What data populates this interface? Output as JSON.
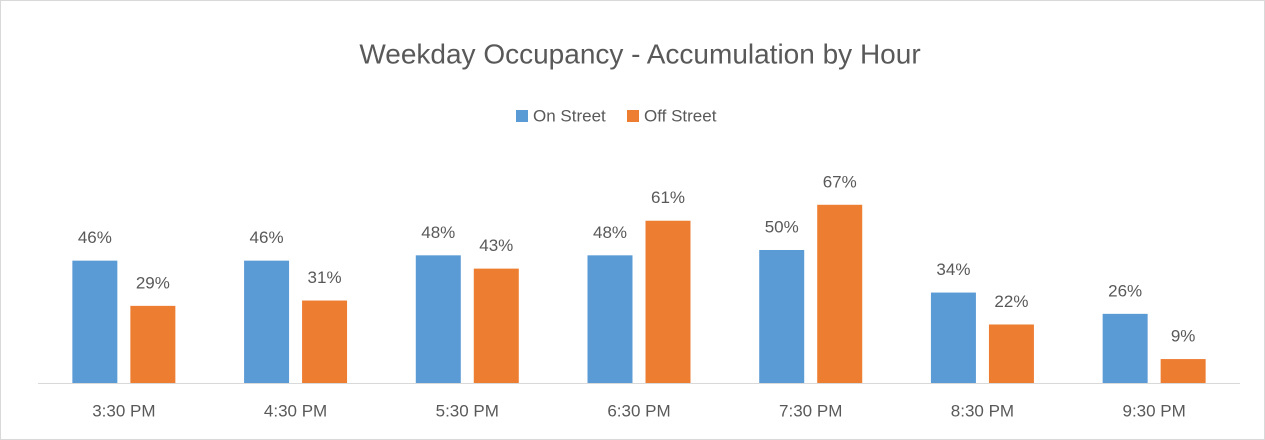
{
  "chart_data": {
    "type": "bar",
    "title": "Weekday Occupancy - Accumulation by Hour",
    "categories": [
      "3:30 PM",
      "4:30 PM",
      "5:30 PM",
      "6:30 PM",
      "7:30 PM",
      "8:30 PM",
      "9:30 PM"
    ],
    "series": [
      {
        "name": "On Street",
        "color": "#5b9bd5",
        "values": [
          46,
          46,
          48,
          48,
          50,
          34,
          26
        ],
        "value_labels": [
          "46%",
          "46%",
          "48%",
          "48%",
          "50%",
          "34%",
          "26%"
        ]
      },
      {
        "name": "Off Street",
        "color": "#ed7d31",
        "values": [
          29,
          31,
          43,
          61,
          67,
          22,
          9
        ],
        "value_labels": [
          "29%",
          "31%",
          "43%",
          "61%",
          "67%",
          "22%",
          "9%"
        ]
      }
    ],
    "legend": "top"
  }
}
